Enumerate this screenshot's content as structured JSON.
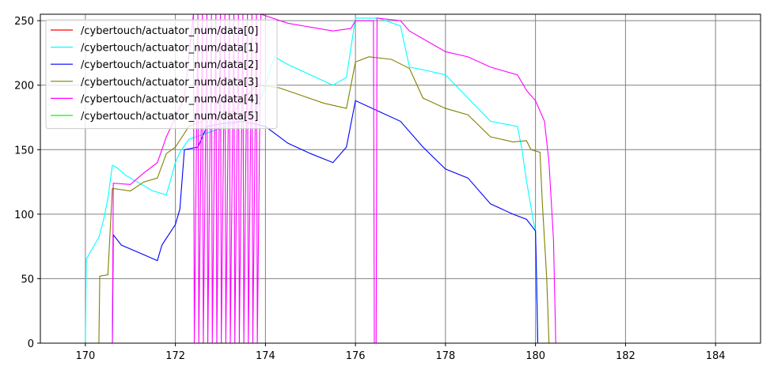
{
  "chart_data": {
    "type": "line",
    "title": "",
    "xlabel": "",
    "ylabel": "",
    "xlim": [
      169.0,
      185.0
    ],
    "ylim": [
      0,
      255
    ],
    "x_ticks": [
      170,
      172,
      174,
      176,
      178,
      180,
      182,
      184
    ],
    "y_ticks": [
      0,
      50,
      100,
      150,
      200,
      250
    ],
    "grid": true,
    "legend_position": "top-left",
    "series": [
      {
        "name": "/cybertouch/actuator_num/data[0]",
        "color": "#ff0000",
        "points": [
          [
            169.0,
            0
          ],
          [
            185.0,
            0
          ]
        ]
      },
      {
        "name": "/cybertouch/actuator_num/data[1]",
        "color": "#00ffff",
        "points": [
          [
            169.0,
            0
          ],
          [
            170.0,
            0
          ],
          [
            170.02,
            65
          ],
          [
            170.1,
            70
          ],
          [
            170.2,
            76
          ],
          [
            170.3,
            82
          ],
          [
            170.4,
            95
          ],
          [
            170.5,
            112
          ],
          [
            170.6,
            138
          ],
          [
            170.7,
            136
          ],
          [
            170.9,
            130
          ],
          [
            171.2,
            124
          ],
          [
            171.5,
            118
          ],
          [
            171.8,
            115
          ],
          [
            172.0,
            140
          ],
          [
            172.1,
            148
          ],
          [
            172.3,
            158
          ],
          [
            172.8,
            164
          ],
          [
            173.3,
            170
          ],
          [
            173.8,
            180
          ],
          [
            174.0,
            200
          ],
          [
            174.2,
            222
          ],
          [
            174.5,
            216
          ],
          [
            175.0,
            208
          ],
          [
            175.5,
            200
          ],
          [
            175.8,
            206
          ],
          [
            176.0,
            252
          ],
          [
            176.5,
            252
          ],
          [
            177.0,
            246
          ],
          [
            177.2,
            214
          ],
          [
            177.5,
            212
          ],
          [
            178.0,
            208
          ],
          [
            178.5,
            190
          ],
          [
            179.0,
            172
          ],
          [
            179.6,
            168
          ],
          [
            179.7,
            150
          ],
          [
            179.8,
            126
          ],
          [
            179.95,
            95
          ],
          [
            180.0,
            87
          ],
          [
            180.05,
            0
          ],
          [
            185.0,
            0
          ]
        ]
      },
      {
        "name": "/cybertouch/actuator_num/data[2]",
        "color": "#0000ff",
        "points": [
          [
            169.0,
            0
          ],
          [
            170.6,
            0
          ],
          [
            170.62,
            84
          ],
          [
            170.8,
            76
          ],
          [
            171.2,
            70
          ],
          [
            171.6,
            64
          ],
          [
            171.7,
            76
          ],
          [
            172.0,
            92
          ],
          [
            172.1,
            104
          ],
          [
            172.2,
            150
          ],
          [
            172.5,
            152
          ],
          [
            172.7,
            168
          ],
          [
            173.0,
            170
          ],
          [
            173.5,
            172
          ],
          [
            174.0,
            168
          ],
          [
            174.5,
            155
          ],
          [
            175.0,
            147
          ],
          [
            175.5,
            140
          ],
          [
            175.8,
            152
          ],
          [
            176.0,
            188
          ],
          [
            176.5,
            180
          ],
          [
            177.0,
            172
          ],
          [
            177.5,
            152
          ],
          [
            178.0,
            135
          ],
          [
            178.5,
            128
          ],
          [
            179.0,
            108
          ],
          [
            179.5,
            100
          ],
          [
            179.8,
            96
          ],
          [
            180.0,
            87
          ],
          [
            180.02,
            57
          ],
          [
            180.05,
            0
          ],
          [
            185.0,
            0
          ]
        ]
      },
      {
        "name": "/cybertouch/actuator_num/data[3]",
        "color": "#808000",
        "points": [
          [
            169.0,
            0
          ],
          [
            170.3,
            0
          ],
          [
            170.32,
            52
          ],
          [
            170.5,
            53
          ],
          [
            170.6,
            120
          ],
          [
            171.0,
            118
          ],
          [
            171.3,
            125
          ],
          [
            171.6,
            128
          ],
          [
            171.8,
            147
          ],
          [
            172.0,
            152
          ],
          [
            172.3,
            168
          ],
          [
            172.8,
            175
          ],
          [
            173.3,
            180
          ],
          [
            173.8,
            200
          ],
          [
            174.3,
            198
          ],
          [
            174.8,
            192
          ],
          [
            175.3,
            186
          ],
          [
            175.8,
            182
          ],
          [
            176.0,
            218
          ],
          [
            176.3,
            222
          ],
          [
            176.8,
            220
          ],
          [
            177.2,
            213
          ],
          [
            177.5,
            190
          ],
          [
            178.0,
            182
          ],
          [
            178.5,
            177
          ],
          [
            179.0,
            160
          ],
          [
            179.5,
            156
          ],
          [
            179.8,
            157
          ],
          [
            179.9,
            150
          ],
          [
            180.1,
            148
          ],
          [
            180.15,
            110
          ],
          [
            180.25,
            50
          ],
          [
            180.3,
            0
          ],
          [
            185.0,
            0
          ]
        ]
      },
      {
        "name": "/cybertouch/actuator_num/data[4]",
        "color": "#ff00ff",
        "points": [
          [
            169.0,
            0
          ],
          [
            170.6,
            0
          ],
          [
            170.62,
            124
          ],
          [
            171.0,
            123
          ],
          [
            171.3,
            132
          ],
          [
            171.6,
            140
          ],
          [
            171.8,
            160
          ],
          [
            172.0,
            175
          ],
          [
            172.2,
            190
          ],
          [
            172.4,
            255
          ],
          [
            172.42,
            0
          ],
          [
            172.5,
            255
          ],
          [
            172.52,
            0
          ],
          [
            172.6,
            255
          ],
          [
            172.62,
            0
          ],
          [
            172.7,
            255
          ],
          [
            172.72,
            0
          ],
          [
            172.8,
            255
          ],
          [
            172.82,
            0
          ],
          [
            172.9,
            255
          ],
          [
            172.92,
            0
          ],
          [
            173.0,
            255
          ],
          [
            173.02,
            0
          ],
          [
            173.1,
            255
          ],
          [
            173.12,
            0
          ],
          [
            173.2,
            255
          ],
          [
            173.22,
            0
          ],
          [
            173.3,
            255
          ],
          [
            173.32,
            0
          ],
          [
            173.4,
            255
          ],
          [
            173.42,
            0
          ],
          [
            173.5,
            255
          ],
          [
            173.52,
            0
          ],
          [
            173.6,
            255
          ],
          [
            173.62,
            0
          ],
          [
            173.7,
            255
          ],
          [
            173.72,
            0
          ],
          [
            173.8,
            255
          ],
          [
            173.82,
            0
          ],
          [
            173.9,
            255
          ],
          [
            174.5,
            248
          ],
          [
            175.0,
            245
          ],
          [
            175.5,
            242
          ],
          [
            175.9,
            244
          ],
          [
            176.0,
            250
          ],
          [
            176.4,
            250
          ],
          [
            176.42,
            0
          ],
          [
            176.46,
            0
          ],
          [
            176.48,
            252
          ],
          [
            177.0,
            250
          ],
          [
            177.2,
            242
          ],
          [
            177.5,
            236
          ],
          [
            178.0,
            226
          ],
          [
            178.5,
            222
          ],
          [
            179.0,
            214
          ],
          [
            179.6,
            208
          ],
          [
            179.8,
            196
          ],
          [
            180.0,
            188
          ],
          [
            180.2,
            172
          ],
          [
            180.3,
            140
          ],
          [
            180.4,
            80
          ],
          [
            180.45,
            0
          ],
          [
            185.0,
            0
          ]
        ]
      },
      {
        "name": "/cybertouch/actuator_num/data[5]",
        "color": "#00ff00",
        "points": [
          [
            169.0,
            0
          ],
          [
            185.0,
            0
          ]
        ]
      }
    ]
  }
}
